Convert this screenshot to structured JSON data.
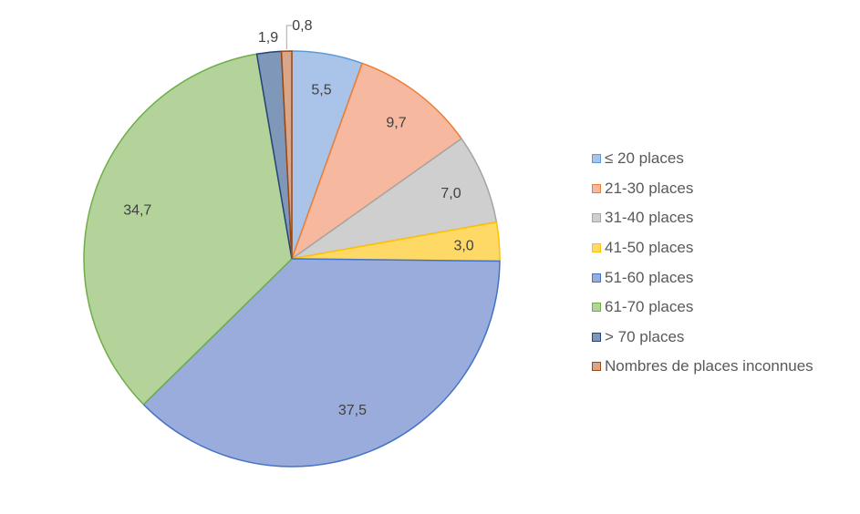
{
  "chart_data": {
    "type": "pie",
    "title": "",
    "slices": [
      {
        "label": "≤ 20 places",
        "value": 5.5,
        "display": "5,5",
        "fill": "#A9C4E8",
        "stroke": "#5B9BD5"
      },
      {
        "label": "21-30 places",
        "value": 9.7,
        "display": "9,7",
        "fill": "#F6B89F",
        "stroke": "#ED7D31"
      },
      {
        "label": "31-40 places",
        "value": 7.0,
        "display": "7,0",
        "fill": "#CFCFCF",
        "stroke": "#A5A5A5"
      },
      {
        "label": "41-50 places",
        "value": 3.0,
        "display": "3,0",
        "fill": "#FFD966",
        "stroke": "#FFC000"
      },
      {
        "label": "51-60 places",
        "value": 37.5,
        "display": "37,5",
        "fill": "#99ACDC",
        "stroke": "#4472C4"
      },
      {
        "label": "61-70 places",
        "value": 34.7,
        "display": "34,7",
        "fill": "#B3D39A",
        "stroke": "#70AD47"
      },
      {
        "label": "> 70 places",
        "value": 1.9,
        "display": "1,9",
        "fill": "#7F97B8",
        "stroke": "#264478"
      },
      {
        "label": "Nombres de places inconnues",
        "value": 0.8,
        "display": "0,8",
        "fill": "#D9A68A",
        "stroke": "#9E480E"
      }
    ],
    "legend_position": "right"
  }
}
